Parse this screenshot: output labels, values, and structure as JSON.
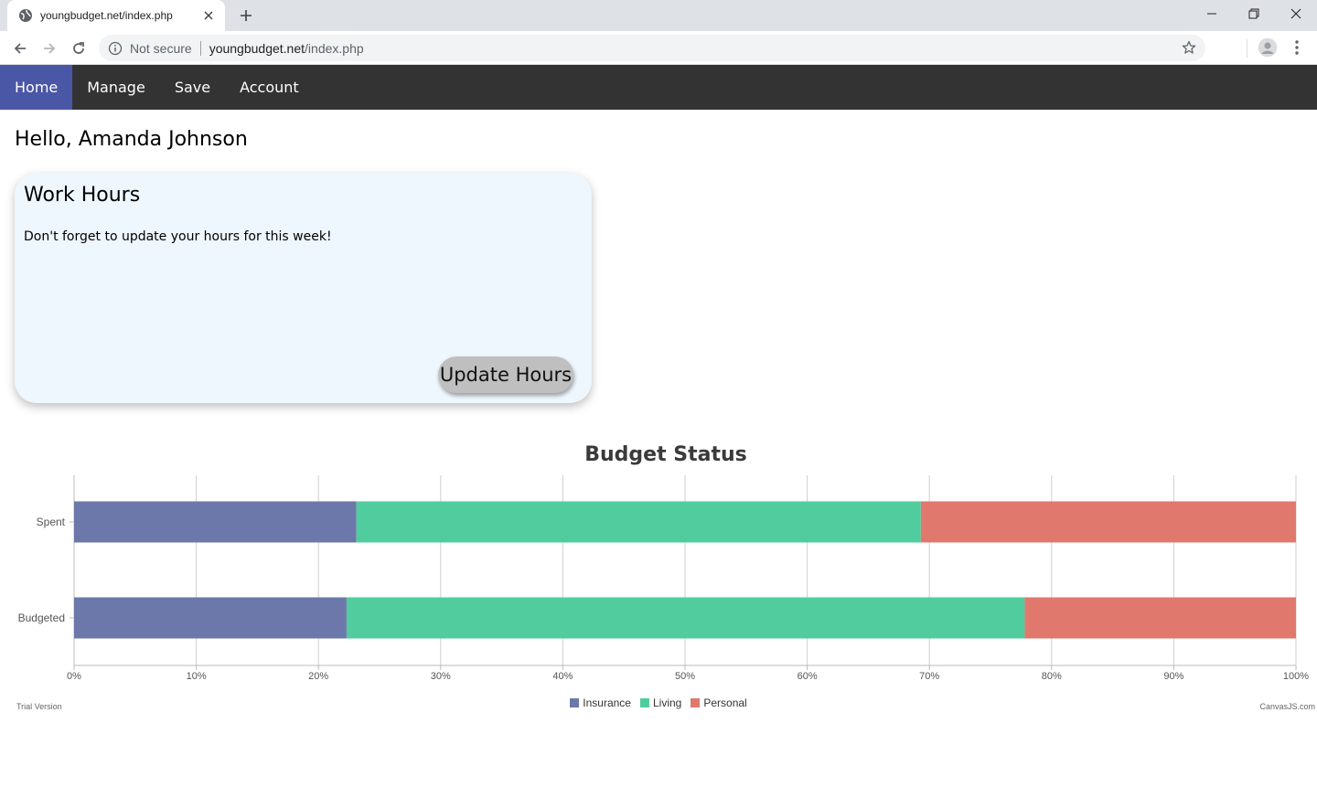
{
  "browser": {
    "tab_title": "youngbudget.net/index.php",
    "url_secure_label": "Not secure",
    "url_host": "youngbudget.net",
    "url_path": "/index.php"
  },
  "nav": {
    "items": [
      {
        "label": "Home",
        "active": true
      },
      {
        "label": "Manage",
        "active": false
      },
      {
        "label": "Save",
        "active": false
      },
      {
        "label": "Account",
        "active": false
      }
    ]
  },
  "greeting": "Hello, Amanda Johnson",
  "work_card": {
    "title": "Work Hours",
    "message": "Don't forget to update your hours for this week!",
    "button_label": "Update Hours"
  },
  "colors": {
    "nav_bg": "#333333",
    "nav_active": "#4a56a6",
    "card_bg": "#eef6fe",
    "insurance": "#6d78aa",
    "living": "#51cc9e",
    "personal": "#e0786e"
  },
  "chart_data": {
    "type": "bar",
    "orientation": "horizontal",
    "stacked": "100%",
    "title": "Budget Status",
    "categories": [
      "Spent",
      "Budgeted"
    ],
    "series": [
      {
        "name": "Insurance",
        "values": [
          23.1,
          22.3
        ]
      },
      {
        "name": "Living",
        "values": [
          46.2,
          55.5
        ]
      },
      {
        "name": "Personal",
        "values": [
          30.7,
          22.2
        ]
      }
    ],
    "x_ticks": [
      "0%",
      "10%",
      "20%",
      "30%",
      "40%",
      "50%",
      "60%",
      "70%",
      "80%",
      "90%",
      "100%"
    ],
    "xlim": [
      0,
      100
    ],
    "grid": true,
    "legend": "bottom-center",
    "footer_left": "Trial Version",
    "footer_right": "CanvasJS.com"
  }
}
